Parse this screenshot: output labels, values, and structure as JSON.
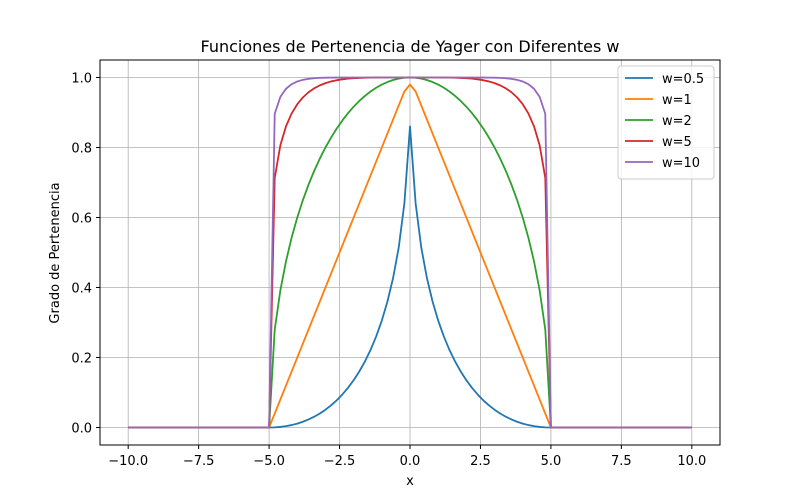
{
  "chart_data": {
    "type": "line",
    "title": "Funciones de Pertenencia de Yager con Diferentes w",
    "xlabel": "x",
    "ylabel": "Grado de Pertenencia",
    "xlim": [
      -11,
      11
    ],
    "ylim": [
      -0.05,
      1.05
    ],
    "xticks": [
      -10,
      -7.5,
      -5,
      -2.5,
      0,
      2.5,
      5,
      7.5,
      10
    ],
    "xtick_labels": [
      "−10.0",
      "−7.5",
      "−5.0",
      "−2.5",
      "0.0",
      "2.5",
      "5.0",
      "7.5",
      "10.0"
    ],
    "yticks": [
      0,
      0.2,
      0.4,
      0.6,
      0.8,
      1.0
    ],
    "ytick_labels": [
      "0.0",
      "0.2",
      "0.4",
      "0.6",
      "0.8",
      "1.0"
    ],
    "grid": true,
    "legend": "top-right",
    "x_domain": [
      -10,
      10
    ],
    "support": [
      -5,
      5
    ],
    "series": [
      {
        "name": "w=0.5",
        "w": 0.5,
        "color": "#1f77b4",
        "peak": 0.86
      },
      {
        "name": "w=1",
        "w": 1,
        "color": "#ff7f0e",
        "peak": 0.98
      },
      {
        "name": "w=2",
        "w": 2,
        "color": "#2ca02c",
        "peak": 1.0
      },
      {
        "name": "w=5",
        "w": 5,
        "color": "#d62728",
        "peak": 1.0
      },
      {
        "name": "w=10",
        "w": 10,
        "color": "#9467bd",
        "peak": 1.0
      }
    ]
  }
}
